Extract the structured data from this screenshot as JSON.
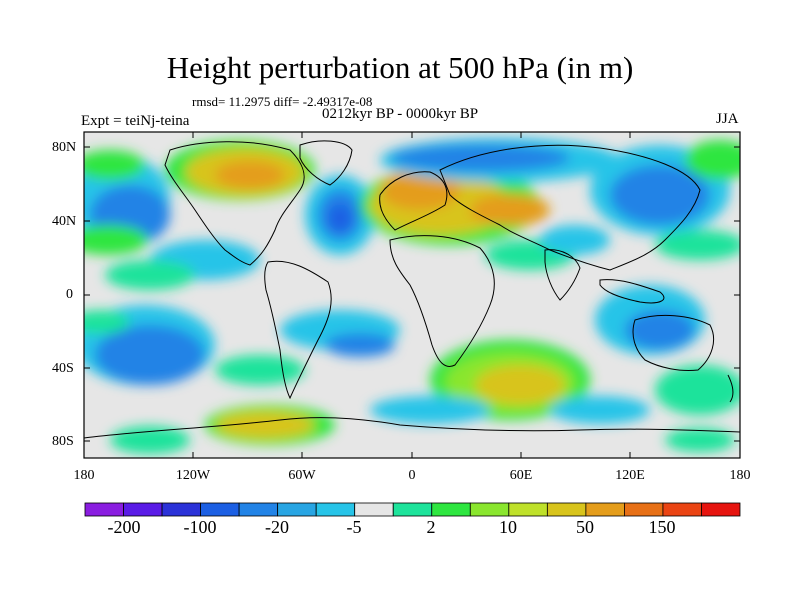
{
  "header": {
    "title": "Height perturbation at 500 hPa (in m)",
    "stats": "rmsd= 11.2975 diff= -2.49317e-08",
    "period": "0212kyr BP - 0000kyr BP",
    "experiment": "Expt = teiNj-teina",
    "season": "JJA"
  },
  "axes": {
    "y_ticks": [
      "80N",
      "40N",
      "0",
      "40S",
      "80S"
    ],
    "x_ticks": [
      "180",
      "120W",
      "60W",
      "0",
      "60E",
      "120E",
      "180"
    ]
  },
  "colorbar": {
    "labels": [
      "-200",
      "-100",
      "-20",
      "-5",
      "2",
      "10",
      "50",
      "150"
    ],
    "colors": [
      "#8a1de0",
      "#5a1be6",
      "#2b32d8",
      "#1c5fe3",
      "#2283e6",
      "#28a5e3",
      "#27c4e8",
      "#e6e6e6",
      "#1ee39b",
      "#2ee640",
      "#8ae62e",
      "#bfe12a",
      "#d8c41c",
      "#e49d1b",
      "#e77016",
      "#ea4413",
      "#e6140f"
    ]
  },
  "palette": {
    "bg": "#e6e6e6",
    "neg_light": "#27c4e8",
    "neg_mid": "#2283e6",
    "neg_strong": "#1c5fe3",
    "pos_light": "#1ee39b",
    "pos_mid": "#2ee640",
    "pos_strong": "#8ae62e",
    "pos_high": "#d8c41c",
    "pos_peak": "#e49d1b"
  }
}
